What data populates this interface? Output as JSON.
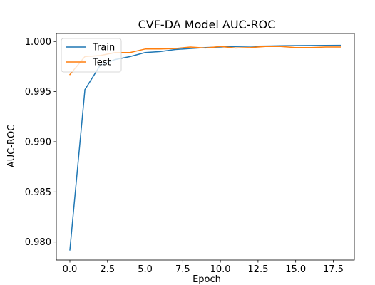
{
  "chart_data": {
    "type": "line",
    "title": "CVF-DA Model AUC-ROC",
    "xlabel": "Epoch",
    "ylabel": "AUC-ROC",
    "xlim": [
      -0.9,
      18.9
    ],
    "ylim": [
      0.9782,
      1.0008
    ],
    "xticks": [
      0.0,
      2.5,
      5.0,
      7.5,
      10.0,
      12.5,
      15.0,
      17.5
    ],
    "xtick_labels": [
      "0.0",
      "2.5",
      "5.0",
      "7.5",
      "10.0",
      "12.5",
      "15.0",
      "17.5"
    ],
    "yticks": [
      0.98,
      0.985,
      0.99,
      0.995,
      1.0
    ],
    "ytick_labels": [
      "0.980",
      "0.985",
      "0.990",
      "0.995",
      "1.000"
    ],
    "grid": false,
    "legend_position": "top-left",
    "x": [
      0,
      1,
      2,
      3,
      4,
      5,
      6,
      7,
      8,
      9,
      10,
      11,
      12,
      13,
      14,
      15,
      16,
      17,
      18
    ],
    "series": [
      {
        "name": "Train",
        "color": "#1f77b4",
        "values": [
          0.9792,
          0.9952,
          0.9976,
          0.9982,
          0.9985,
          0.9989,
          0.999,
          0.9992,
          0.9993,
          0.9994,
          0.99945,
          0.9995,
          0.99953,
          0.99955,
          0.99957,
          0.99959,
          0.9996,
          0.99961,
          0.99962
        ]
      },
      {
        "name": "Test",
        "color": "#ff7f0e",
        "values": [
          0.9967,
          0.9985,
          0.9986,
          0.9989,
          0.9989,
          0.99925,
          0.99925,
          0.9993,
          0.99945,
          0.99935,
          0.9995,
          0.99935,
          0.9994,
          0.9995,
          0.9995,
          0.9994,
          0.9994,
          0.99945,
          0.99945
        ]
      }
    ]
  }
}
